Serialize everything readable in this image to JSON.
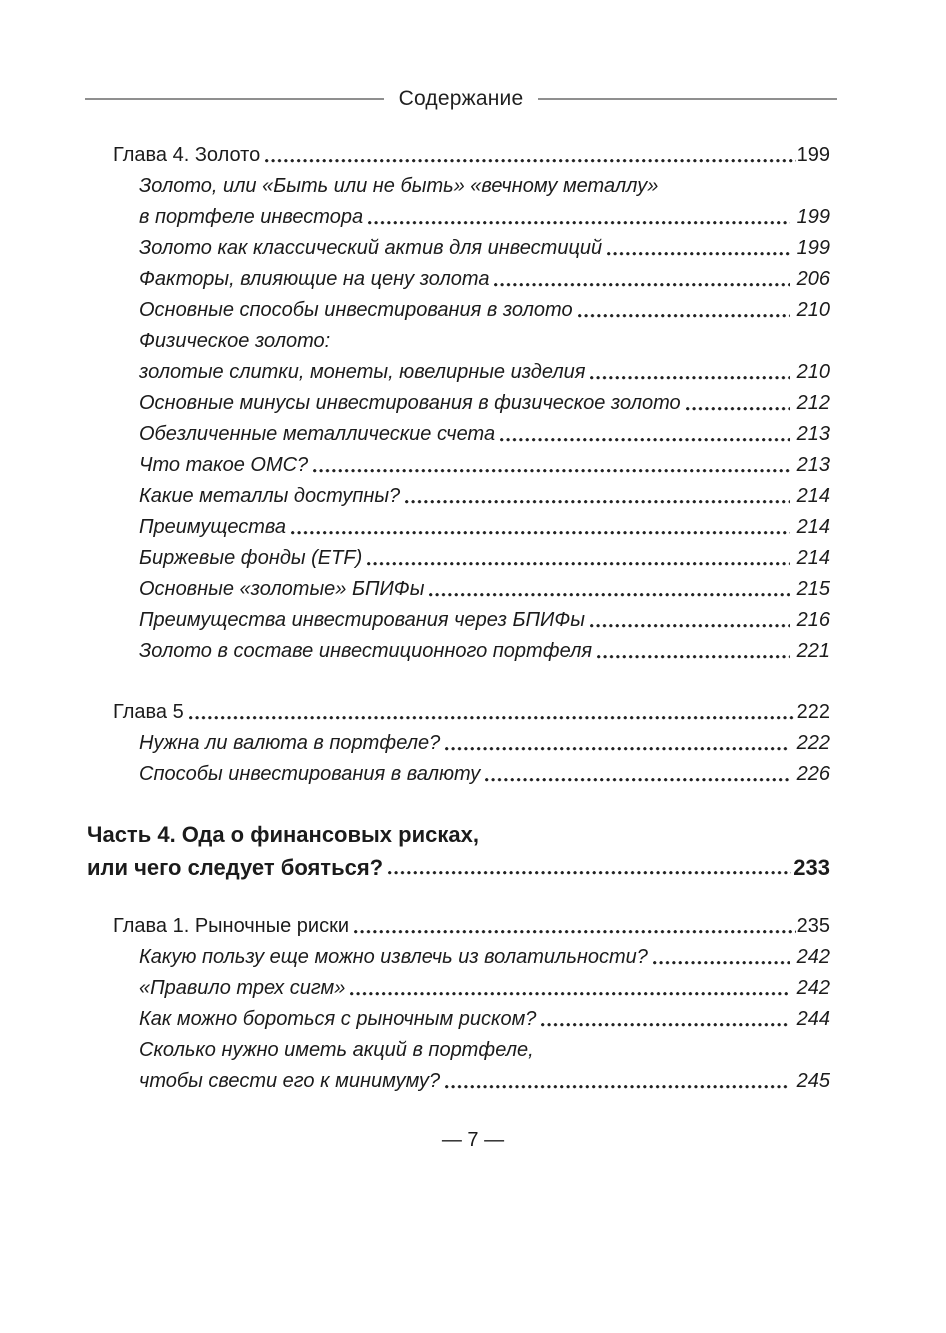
{
  "header": {
    "title": "Содержание"
  },
  "footer": {
    "page_number": "— 7 —"
  },
  "colors": {
    "text": "#1b1b1b",
    "rule": "#8f8f8f",
    "background": "#ffffff"
  },
  "toc": {
    "sections": [
      {
        "rows": [
          {
            "text": "Глава 4. Золото ",
            "page": "199",
            "kind": "chapter"
          },
          {
            "text": "Золото, или «Быть или не быть» «вечному металлу»",
            "page": "",
            "kind": "sub-continued"
          },
          {
            "text": "в портфеле инвестора",
            "page": "199",
            "kind": "sub"
          },
          {
            "text": "Золото как классический актив для инвестиций",
            "page": "199",
            "kind": "sub"
          },
          {
            "text": "Факторы, влияющие на цену золота",
            "page": "206",
            "kind": "sub"
          },
          {
            "text": "Основные способы инвестирования в золото",
            "page": "210",
            "kind": "sub"
          },
          {
            "text": "Физическое золото:",
            "page": "",
            "kind": "sub-continued"
          },
          {
            "text": "золотые слитки, монеты, ювелирные изделия",
            "page": "210",
            "kind": "sub"
          },
          {
            "text": "Основные минусы инвестирования в физическое золото",
            "page": "212",
            "kind": "sub"
          },
          {
            "text": "Обезличенные металлические счета",
            "page": "213",
            "kind": "sub"
          },
          {
            "text": "Что такое ОМС?",
            "page": "213",
            "kind": "sub"
          },
          {
            "text": "Какие металлы доступны?",
            "page": "214",
            "kind": "sub"
          },
          {
            "text": "Преимущества",
            "page": "214",
            "kind": "sub"
          },
          {
            "text": "Биржевые фонды (ETF)",
            "page": "214",
            "kind": "sub"
          },
          {
            "text": "Основные «золотые» БПИФы",
            "page": "215",
            "kind": "sub"
          },
          {
            "text": "Преимущества инвестирования через БПИФы",
            "page": "216",
            "kind": "sub"
          },
          {
            "text": "Золото в составе инвестиционного портфеля",
            "page": "221",
            "kind": "sub"
          }
        ]
      },
      {
        "rows": [
          {
            "text": "Глава 5",
            "page": "222",
            "kind": "chapter"
          },
          {
            "text": "Нужна ли валюта в портфеле?",
            "page": "222",
            "kind": "sub"
          },
          {
            "text": "Способы инвестирования в валюту",
            "page": "226",
            "kind": "sub"
          }
        ]
      },
      {
        "rows": [
          {
            "text": "Часть 4. Ода о финансовых рисках,",
            "page": "",
            "kind": "part-continued"
          },
          {
            "text": "или чего следует бояться? ",
            "page": "233",
            "kind": "part"
          }
        ]
      },
      {
        "rows": [
          {
            "text": "Глава 1. Рыночные риски ",
            "page": "235",
            "kind": "chapter"
          },
          {
            "text": "Какую пользу еще можно извлечь из волатильности?",
            "page": "242",
            "kind": "sub"
          },
          {
            "text": "«Правило трех сигм»",
            "page": "242",
            "kind": "sub"
          },
          {
            "text": "Как можно бороться с рыночным риском?",
            "page": "244",
            "kind": "sub"
          },
          {
            "text": "Сколько нужно иметь акций в портфеле,",
            "page": "",
            "kind": "sub-continued"
          },
          {
            "text": "чтобы свести его к минимуму? ",
            "page": "245",
            "kind": "sub"
          }
        ]
      }
    ]
  }
}
